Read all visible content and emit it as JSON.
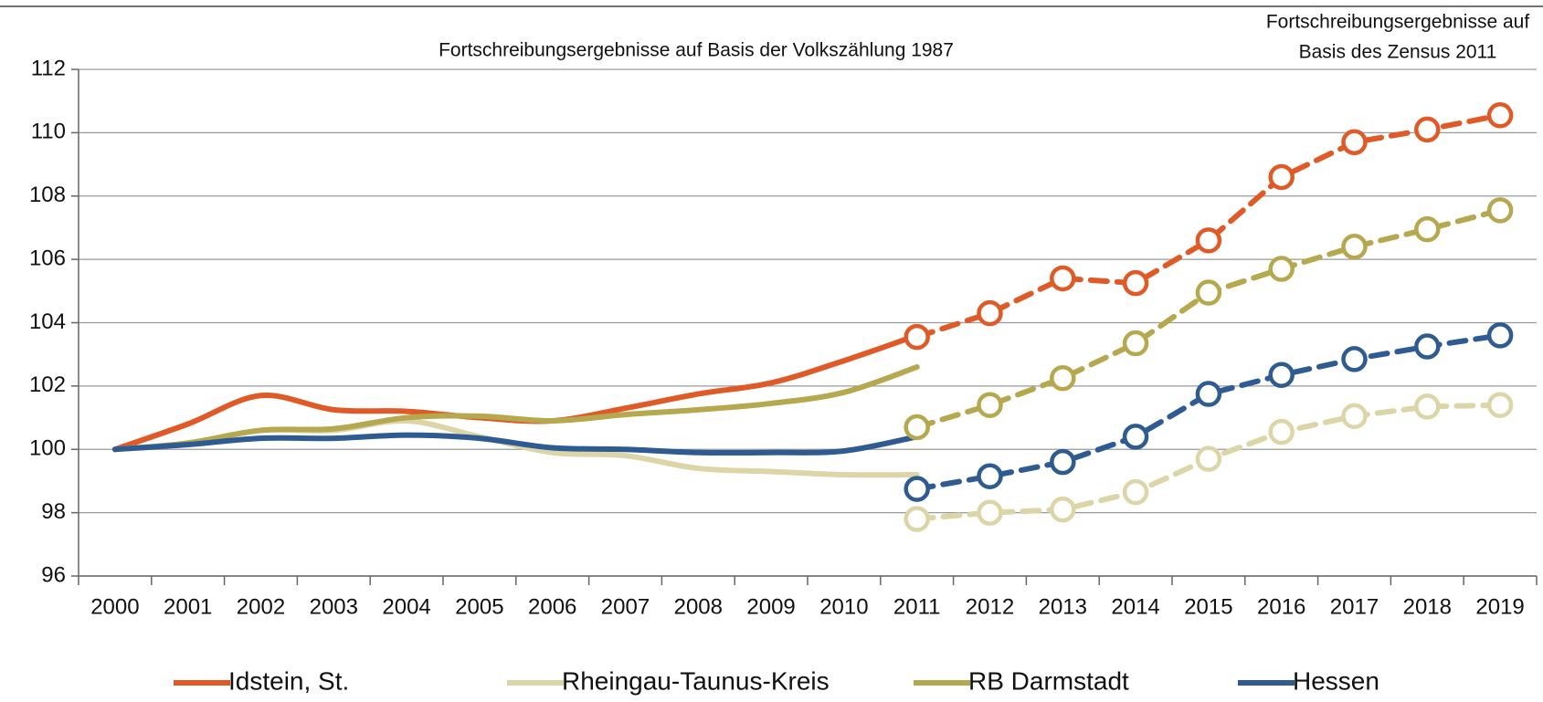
{
  "chart_data": {
    "type": "line",
    "annotations": {
      "census_1987": "Fortschreibungsergebnisse auf Basis der Volkszählung 1987",
      "census_2011": [
        "Fortschreibungsergebnisse auf",
        "Basis des Zensus 2011"
      ]
    },
    "categories": [
      "2000",
      "2001",
      "2002",
      "2003",
      "2004",
      "2005",
      "2006",
      "2007",
      "2008",
      "2009",
      "2010",
      "2011",
      "2012",
      "2013",
      "2014",
      "2015",
      "2016",
      "2017",
      "2018",
      "2019"
    ],
    "ylim": [
      96,
      112
    ],
    "yticks": [
      96,
      98,
      100,
      102,
      104,
      106,
      108,
      110,
      112
    ],
    "grid": true,
    "legend": "bottom",
    "series": [
      {
        "name": "Idstein, St.",
        "color": "#e05a28",
        "values": [
          100,
          100.8,
          101.7,
          101.25,
          101.2,
          101.0,
          100.9,
          101.3,
          101.75,
          102.1,
          102.8,
          103.6,
          null,
          null,
          null,
          null,
          null,
          null,
          null,
          null
        ],
        "census_values": [
          null,
          null,
          null,
          null,
          null,
          null,
          null,
          null,
          null,
          null,
          null,
          103.55,
          104.3,
          105.4,
          105.25,
          106.6,
          108.6,
          109.7,
          110.1,
          110.55
        ]
      },
      {
        "name": "Rheingau-Taunus-Kreis",
        "color": "#dcd5a8",
        "values": [
          100,
          100.2,
          100.6,
          100.6,
          100.9,
          100.4,
          99.9,
          99.8,
          99.4,
          99.3,
          99.2,
          99.2,
          null,
          null,
          null,
          null,
          null,
          null,
          null,
          null
        ],
        "census_values": [
          null,
          null,
          null,
          null,
          null,
          null,
          null,
          null,
          null,
          null,
          null,
          97.8,
          98.0,
          98.1,
          98.65,
          99.7,
          100.55,
          101.05,
          101.35,
          101.4
        ]
      },
      {
        "name": "RB Darmstadt",
        "color": "#b5a84f",
        "values": [
          100,
          100.2,
          100.6,
          100.65,
          101.0,
          101.05,
          100.9,
          101.1,
          101.25,
          101.45,
          101.8,
          102.6,
          null,
          null,
          null,
          null,
          null,
          null,
          null,
          null
        ],
        "census_values": [
          null,
          null,
          null,
          null,
          null,
          null,
          null,
          null,
          null,
          null,
          null,
          100.7,
          101.4,
          102.25,
          103.35,
          104.95,
          105.7,
          106.4,
          106.95,
          107.55
        ]
      },
      {
        "name": "Hessen",
        "color": "#2f5b93",
        "values": [
          100,
          100.15,
          100.35,
          100.35,
          100.45,
          100.35,
          100.05,
          100.0,
          99.9,
          99.9,
          99.95,
          100.4,
          null,
          null,
          null,
          null,
          null,
          null,
          null,
          null
        ],
        "census_values": [
          null,
          null,
          null,
          null,
          null,
          null,
          null,
          null,
          null,
          null,
          null,
          98.75,
          99.15,
          99.6,
          100.4,
          101.75,
          102.35,
          102.85,
          103.25,
          103.6
        ]
      }
    ]
  }
}
